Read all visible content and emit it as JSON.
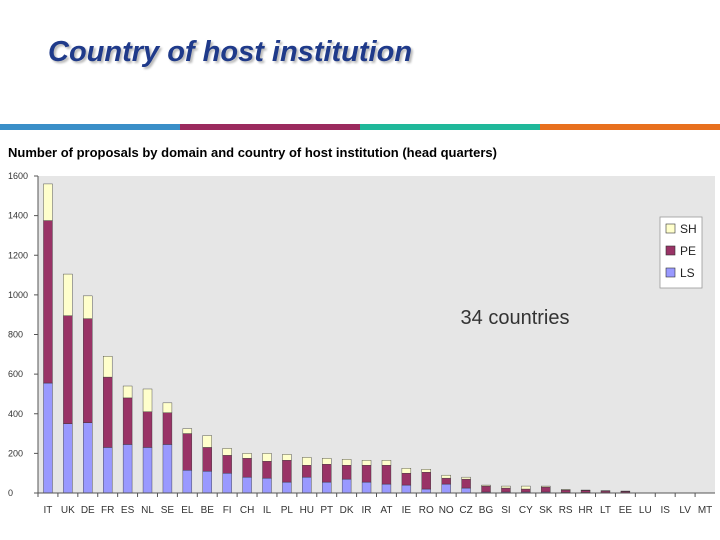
{
  "slide": {
    "title": "Country of host institution",
    "subtitle": "Number of proposals by domain and country of host institution (head quarters)",
    "stripe_colors": [
      "#3a8fc8",
      "#9b2a5e",
      "#1fb89a",
      "#e8701e"
    ]
  },
  "chart_data": {
    "type": "bar",
    "stacked": true,
    "categories": [
      "IT",
      "UK",
      "DE",
      "FR",
      "ES",
      "NL",
      "SE",
      "EL",
      "BE",
      "FI",
      "CH",
      "IL",
      "PL",
      "HU",
      "PT",
      "DK",
      "IR",
      "AT",
      "IE",
      "RO",
      "NO",
      "CZ",
      "BG",
      "SI",
      "CY",
      "SK",
      "RS",
      "HR",
      "LT",
      "EE",
      "LU",
      "IS",
      "LV",
      "MT"
    ],
    "series": [
      {
        "name": "LS",
        "color": "#9999ff",
        "values": [
          555,
          350,
          355,
          230,
          245,
          230,
          245,
          115,
          110,
          100,
          80,
          75,
          55,
          80,
          55,
          70,
          55,
          45,
          40,
          20,
          45,
          25,
          5,
          5,
          5,
          5,
          3,
          3,
          2,
          2,
          0,
          0,
          0,
          0
        ]
      },
      {
        "name": "PE",
        "color": "#993366",
        "values": [
          820,
          545,
          525,
          355,
          235,
          180,
          160,
          185,
          120,
          90,
          95,
          85,
          110,
          60,
          90,
          70,
          85,
          95,
          60,
          85,
          30,
          45,
          30,
          20,
          15,
          25,
          12,
          10,
          8,
          6,
          0,
          0,
          0,
          0
        ]
      },
      {
        "name": "SH",
        "color": "#ffffcc",
        "values": [
          185,
          210,
          115,
          105,
          60,
          115,
          50,
          25,
          60,
          35,
          25,
          40,
          30,
          40,
          30,
          30,
          25,
          25,
          25,
          15,
          15,
          10,
          5,
          10,
          15,
          5,
          3,
          2,
          2,
          2,
          0,
          0,
          0,
          0
        ]
      }
    ],
    "legend_order": [
      "SH",
      "PE",
      "LS"
    ],
    "legend_position": "top-right",
    "ylim": [
      0,
      1600
    ],
    "yticks": [
      "0",
      "200",
      "400",
      "600",
      "800",
      "1000",
      "1200",
      "1400",
      "1600"
    ],
    "annotation": "34 countries",
    "grid": false
  }
}
